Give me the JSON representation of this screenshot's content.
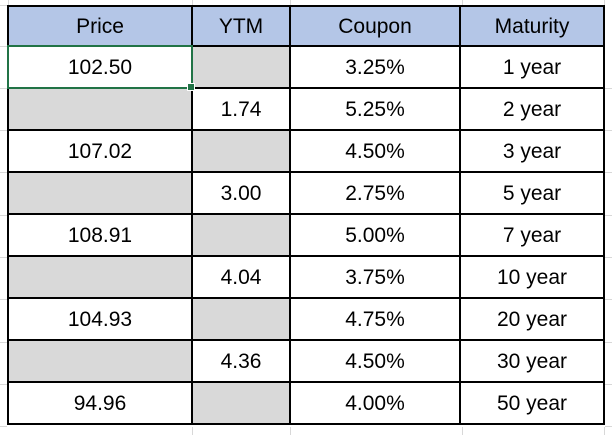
{
  "app": "spreadsheet-grid",
  "colors": {
    "header_bg": "#b4c6e7",
    "empty_cell_bg": "#d9d9d9",
    "grid_border": "#000000",
    "selection_border": "#217346",
    "outer_gridline": "#d8d8d8"
  },
  "selection": {
    "value": "102.50",
    "column": "Price",
    "row_index": 1
  },
  "table": {
    "headers": [
      "Price",
      "YTM",
      "Coupon",
      "Maturity"
    ],
    "rows": [
      {
        "price": "102.50",
        "ytm": "",
        "coupon": "3.25%",
        "maturity": "1 year"
      },
      {
        "price": "",
        "ytm": "1.74",
        "coupon": "5.25%",
        "maturity": "2 year"
      },
      {
        "price": "107.02",
        "ytm": "",
        "coupon": "4.50%",
        "maturity": "3 year"
      },
      {
        "price": "",
        "ytm": "3.00",
        "coupon": "2.75%",
        "maturity": "5 year"
      },
      {
        "price": "108.91",
        "ytm": "",
        "coupon": "5.00%",
        "maturity": "7 year"
      },
      {
        "price": "",
        "ytm": "4.04",
        "coupon": "3.75%",
        "maturity": "10 year"
      },
      {
        "price": "104.93",
        "ytm": "",
        "coupon": "4.75%",
        "maturity": "20 year"
      },
      {
        "price": "",
        "ytm": "4.36",
        "coupon": "4.50%",
        "maturity": "30 year"
      },
      {
        "price": "94.96",
        "ytm": "",
        "coupon": "4.00%",
        "maturity": "50 year"
      }
    ]
  }
}
